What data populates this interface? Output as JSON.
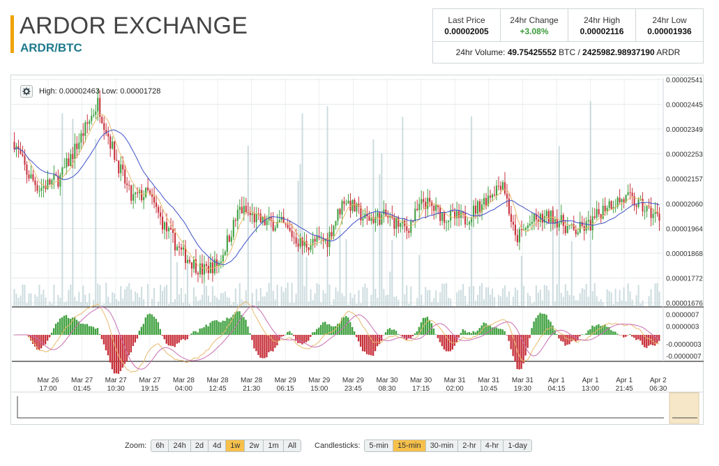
{
  "header": {
    "title": "ARDOR EXCHANGE",
    "pair": "ARDR/BTC"
  },
  "stats": {
    "last_price_label": "Last Price",
    "last_price": "0.00002005",
    "change_label": "24hr Change",
    "change": "+3.08%",
    "high_label": "24hr High",
    "high": "0.00002116",
    "low_label": "24hr Low",
    "low": "0.00001936",
    "volume_prefix": "24hr Volume:",
    "volume_btc": "49.75425552",
    "volume_btc_unit": "BTC /",
    "volume_ardr": "2425982.98937190",
    "volume_ardr_unit": "ARDR"
  },
  "chart": {
    "hilo_text": "High: 0.00002463   Low: 0.00001728",
    "colors": {
      "up": "#3fa03f",
      "down": "#c8323c",
      "ma_fast": "#e8b86a",
      "ma_slow": "#3b4fc8",
      "volume": "#b9cfd3"
    }
  },
  "chart_data": {
    "type": "candlestick",
    "price_axis_labels": [
      "0.00002541",
      "0.00002445",
      "0.00002349",
      "0.00002253",
      "0.00002157",
      "0.00002060",
      "0.00001964",
      "0.00001868",
      "0.00001772",
      "0.00001676"
    ],
    "macd_axis_labels": [
      "0.0000007",
      "0.0000003",
      "-0.0000003",
      "-0.0000007"
    ],
    "time_labels": [
      [
        "Mar 26",
        "17:00"
      ],
      [
        "Mar 27",
        "01:45"
      ],
      [
        "Mar 27",
        "10:30"
      ],
      [
        "Mar 27",
        "19:15"
      ],
      [
        "Mar 28",
        "04:00"
      ],
      [
        "Mar 28",
        "12:45"
      ],
      [
        "Mar 28",
        "21:30"
      ],
      [
        "Mar 29",
        "06:15"
      ],
      [
        "Mar 29",
        "15:00"
      ],
      [
        "Mar 29",
        "23:45"
      ],
      [
        "Mar 30",
        "08:30"
      ],
      [
        "Mar 30",
        "17:15"
      ],
      [
        "Mar 31",
        "02:00"
      ],
      [
        "Mar 31",
        "10:45"
      ],
      [
        "Mar 31",
        "19:30"
      ],
      [
        "Apr 1",
        "04:15"
      ],
      [
        "Apr 1",
        "13:00"
      ],
      [
        "Apr 1",
        "21:45"
      ],
      [
        "Apr 2",
        "06:30"
      ]
    ],
    "price_keyframes": [
      [
        0,
        2.3e-05
      ],
      [
        6,
        2.18e-05
      ],
      [
        12,
        2.12e-05
      ],
      [
        22,
        2.16e-05
      ],
      [
        34,
        2.35e-05
      ],
      [
        40,
        2.45e-05
      ],
      [
        48,
        2.25e-05
      ],
      [
        56,
        2.08e-05
      ],
      [
        64,
        2.1e-05
      ],
      [
        72,
        1.97e-05
      ],
      [
        80,
        1.87e-05
      ],
      [
        90,
        1.8e-05
      ],
      [
        98,
        1.83e-05
      ],
      [
        108,
        2.04e-05
      ],
      [
        118,
        1.99e-05
      ],
      [
        128,
        1.98e-05
      ],
      [
        138,
        1.9e-05
      ],
      [
        150,
        1.92e-05
      ],
      [
        158,
        2.08e-05
      ],
      [
        168,
        2e-05
      ],
      [
        178,
        2.01e-05
      ],
      [
        188,
        1.96e-05
      ],
      [
        196,
        2.07e-05
      ],
      [
        206,
        2.01e-05
      ],
      [
        216,
        2e-05
      ],
      [
        226,
        2.08e-05
      ],
      [
        234,
        2.15e-05
      ],
      [
        240,
        1.92e-05
      ],
      [
        248,
        1.99e-05
      ],
      [
        258,
        2.01e-05
      ],
      [
        268,
        1.95e-05
      ],
      [
        276,
        1.98e-05
      ],
      [
        284,
        2.06e-05
      ],
      [
        294,
        2.08e-05
      ],
      [
        304,
        2.03e-05
      ],
      [
        310,
        2e-05
      ]
    ],
    "candle_count": 310
  },
  "toolbar": {
    "zoom_label": "Zoom:",
    "zoom_options": [
      "6h",
      "24h",
      "2d",
      "4d",
      "1w",
      "2w",
      "1m",
      "All"
    ],
    "zoom_active": "1w",
    "candle_label": "Candlesticks:",
    "candle_options": [
      "5-min",
      "15-min",
      "30-min",
      "2-hr",
      "4-hr",
      "1-day"
    ],
    "candle_active": "15-min"
  }
}
